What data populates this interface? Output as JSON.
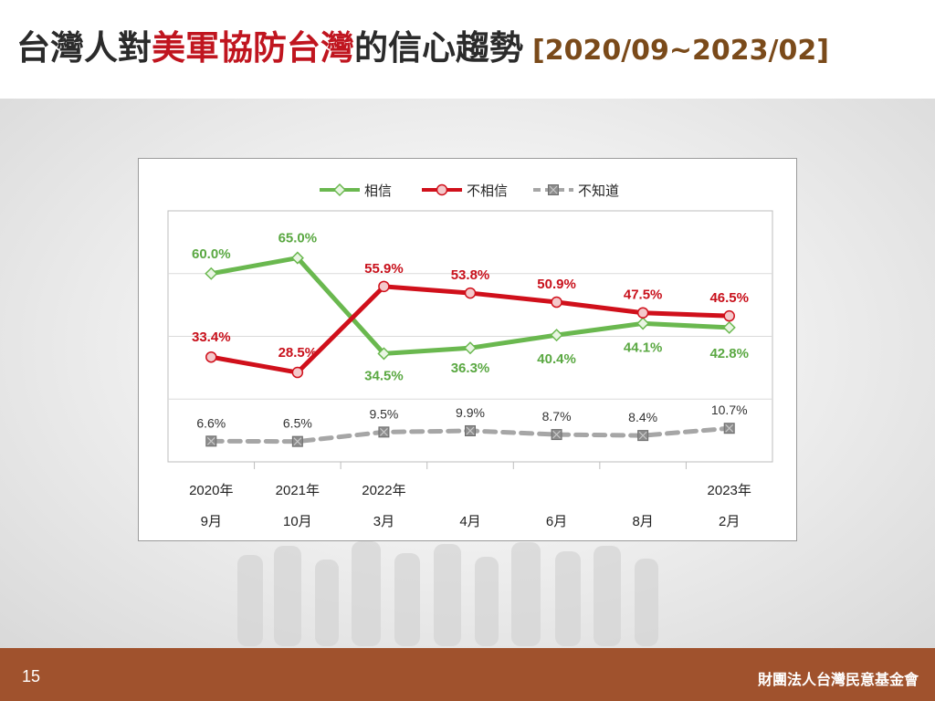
{
  "title": {
    "part1": "台灣人對",
    "part2": "美軍協防台灣",
    "part3": "的信心趨勢",
    "range": "[2020/09~2023/02]"
  },
  "footer": {
    "page_number": "15",
    "organization": "財團法人台灣民意基金會"
  },
  "colors": {
    "trust": "#6ab84f",
    "distrust": "#d0101b",
    "unknown": "#a6a6a6",
    "trust_label": "#5aa842",
    "distrust_label": "#c8101b",
    "unknown_label": "#333333"
  },
  "chart_data": {
    "type": "line",
    "categories": [
      [
        "2020年",
        "9月"
      ],
      [
        "2021年",
        "10月"
      ],
      [
        "2022年",
        "3月"
      ],
      [
        "",
        "4月"
      ],
      [
        "",
        "6月"
      ],
      [
        "",
        "8月"
      ],
      [
        "2023年",
        "2月"
      ]
    ],
    "series": [
      {
        "name": "相信",
        "values": [
          60.0,
          65.0,
          34.5,
          36.3,
          40.4,
          44.1,
          42.8
        ],
        "labels": [
          "60.0%",
          "65.0%",
          "34.5%",
          "36.3%",
          "40.4%",
          "44.1%",
          "42.8%"
        ]
      },
      {
        "name": "不相信",
        "values": [
          33.4,
          28.5,
          55.9,
          53.8,
          50.9,
          47.5,
          46.5
        ],
        "labels": [
          "33.4%",
          "28.5%",
          "55.9%",
          "53.8%",
          "50.9%",
          "47.5%",
          "46.5%"
        ]
      },
      {
        "name": "不知道",
        "values": [
          6.6,
          6.5,
          9.5,
          9.9,
          8.7,
          8.4,
          10.7
        ],
        "labels": [
          "6.6%",
          "6.5%",
          "9.5%",
          "9.9%",
          "8.7%",
          "8.4%",
          "10.7%"
        ]
      }
    ],
    "ylim": [
      0,
      80
    ],
    "grid": true,
    "legend": "top-center"
  }
}
